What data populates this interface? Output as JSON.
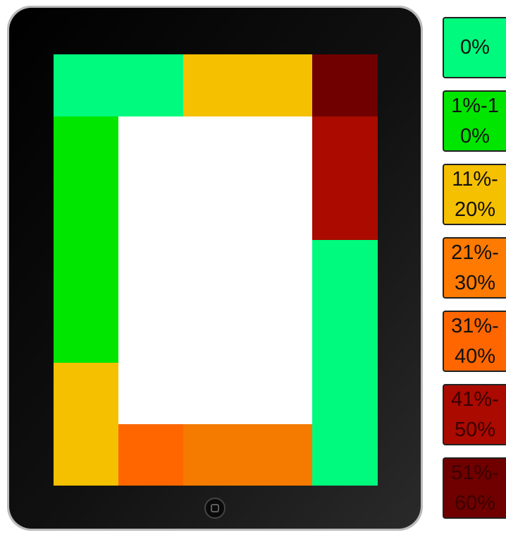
{
  "legend": [
    {
      "label": "0%",
      "color": "#00fa7d"
    },
    {
      "label": "1%-10%",
      "color": "#00e600"
    },
    {
      "label": "11%-20%",
      "color": "#f5c000"
    },
    {
      "label": "21%-30%",
      "color": "#ff7a00"
    },
    {
      "label": "31%-40%",
      "color": "#ff6600"
    },
    {
      "label": "41%-50%",
      "color": "#aa0a00"
    },
    {
      "label": "51%-60%",
      "color": "#700000"
    }
  ]
}
